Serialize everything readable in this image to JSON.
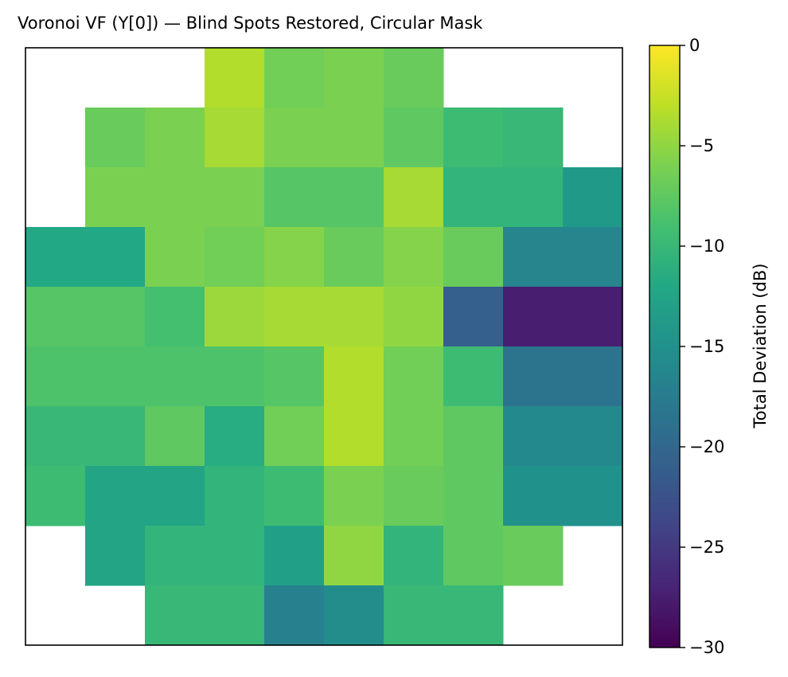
{
  "chart_data": {
    "type": "heatmap",
    "title": "Voronoi VF (Y[0]) — Blind Spots Restored, Circular Mask",
    "colormap": "viridis",
    "mask": "circular",
    "xticks": [],
    "yticks": [],
    "colorbar": {
      "label": "Total Deviation (dB)",
      "range": [
        -30,
        0
      ],
      "ticks": [
        0,
        -5,
        -10,
        -15,
        -20,
        -25,
        -30
      ],
      "tick_labels": [
        "0",
        "−5",
        "−10",
        "−15",
        "−20",
        "−25",
        "−30"
      ],
      "position": "right"
    },
    "grid": {
      "rows": 10,
      "cols": 10,
      "note": "Voronoi regions sampled on a 10x10 block grid; null = outside circular mask",
      "values": [
        [
          null,
          null,
          null,
          -3.5,
          -6.5,
          -6.0,
          -7.0,
          null,
          null,
          null
        ],
        [
          null,
          -7.0,
          -6.0,
          -4.0,
          -6.0,
          -6.0,
          -7.5,
          -9.5,
          -10.0,
          null
        ],
        [
          null,
          -6.0,
          -6.0,
          -6.0,
          -8.0,
          -8.0,
          -4.0,
          -10.5,
          -10.5,
          -14.0
        ],
        [
          -12.0,
          -12.0,
          -6.0,
          -6.5,
          -5.5,
          -7.0,
          -5.5,
          -7.0,
          -16.5,
          -16.5
        ],
        [
          -8.0,
          -8.0,
          -9.0,
          -4.5,
          -4.0,
          -4.0,
          -5.0,
          -21.0,
          -27.5,
          -27.5
        ],
        [
          -8.5,
          -8.5,
          -8.5,
          -8.5,
          -8.0,
          -3.5,
          -6.5,
          -9.5,
          -18.5,
          -18.5
        ],
        [
          -10.0,
          -10.0,
          -7.5,
          -11.5,
          -6.5,
          -3.5,
          -6.5,
          -7.5,
          -16.0,
          -16.0
        ],
        [
          -9.5,
          -12.5,
          -12.5,
          -10.5,
          -9.5,
          -6.0,
          -7.0,
          -7.5,
          -15.0,
          -15.0
        ],
        [
          null,
          -12.5,
          -10.5,
          -10.5,
          -13.0,
          -5.0,
          -10.5,
          -7.5,
          -7.0,
          null
        ],
        [
          null,
          null,
          -10.0,
          -10.0,
          -17.0,
          -15.5,
          -10.0,
          -10.0,
          null,
          null
        ]
      ]
    }
  }
}
